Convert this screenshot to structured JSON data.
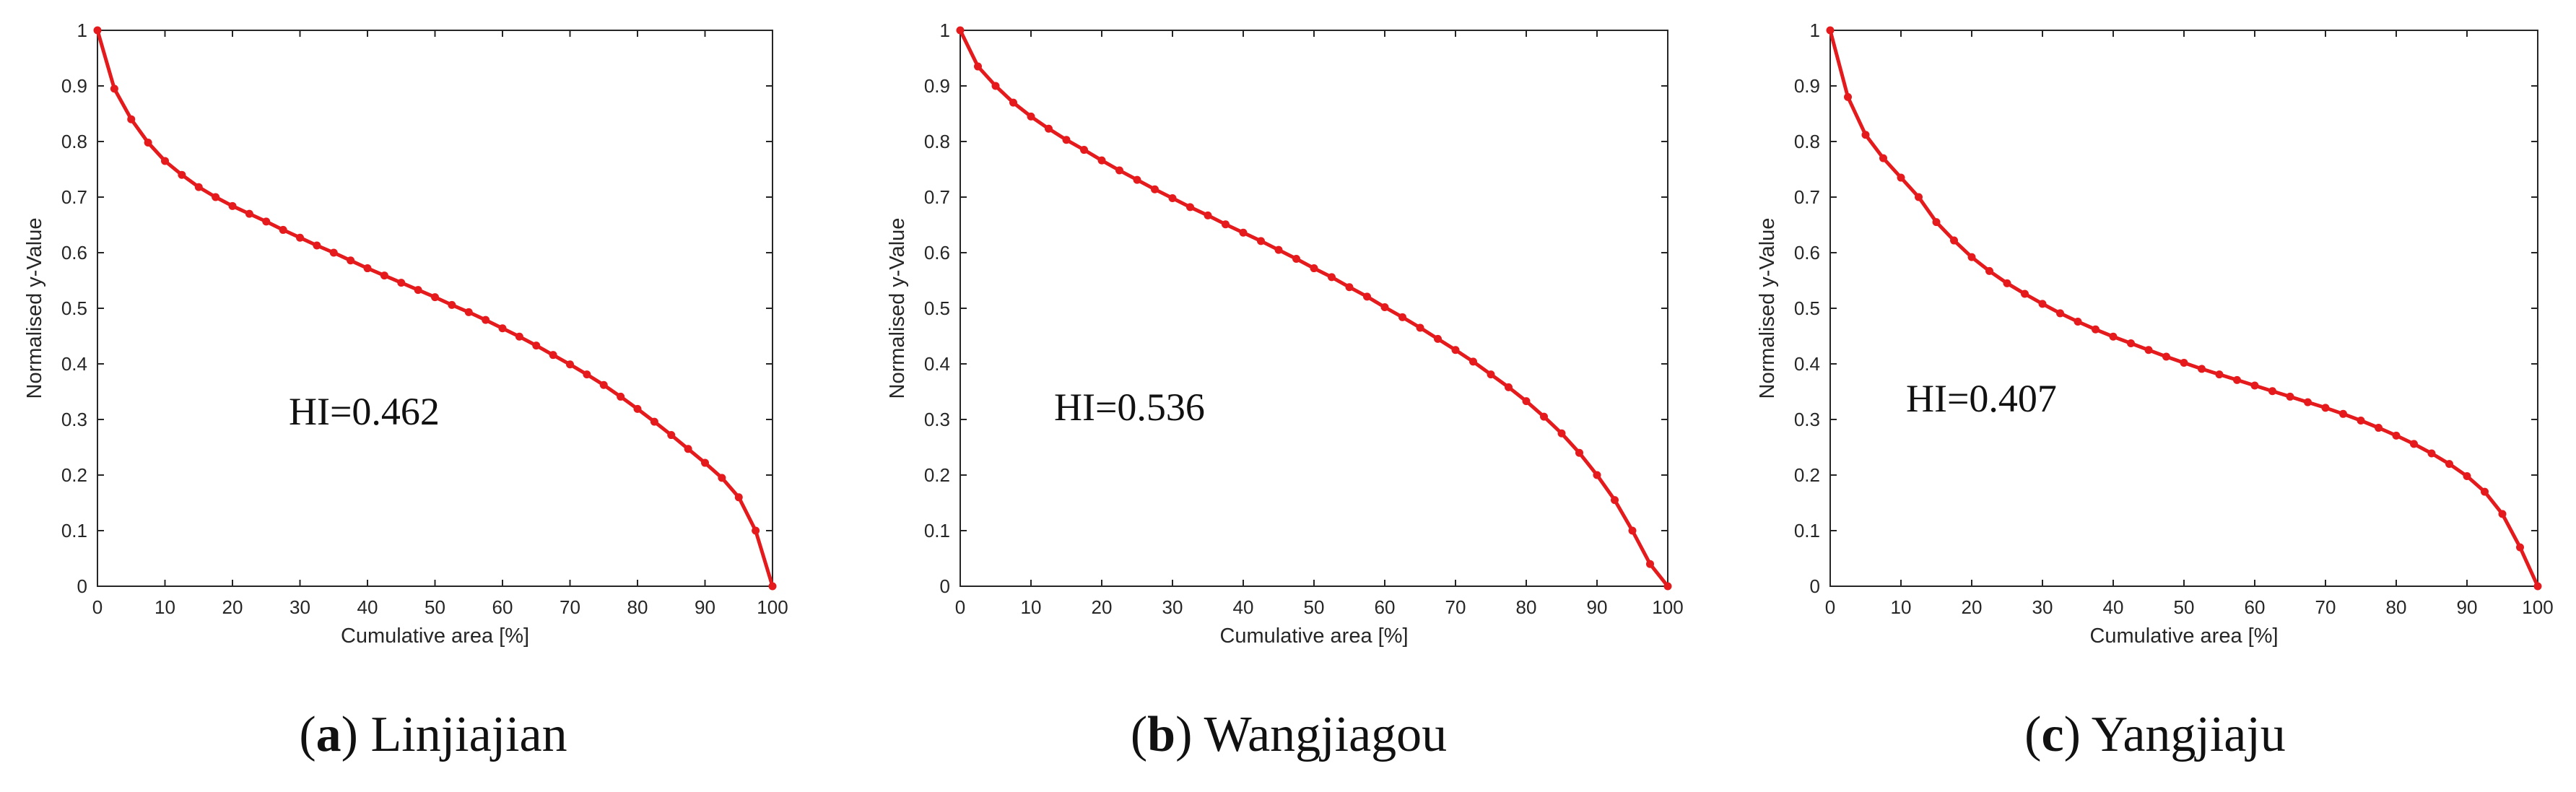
{
  "colors": {
    "curve": "#e41a1c",
    "axis": "#262626"
  },
  "chart_data": [
    {
      "type": "line",
      "xlabel": "Cumulative area [%]",
      "ylabel": "Normalised y-Value",
      "xlim": [
        0,
        100
      ],
      "ylim": [
        0,
        1
      ],
      "xticks": [
        0,
        10,
        20,
        30,
        40,
        50,
        60,
        70,
        80,
        90,
        100
      ],
      "yticks": [
        0,
        0.1,
        0.2,
        0.3,
        0.4,
        0.5,
        0.6,
        0.7,
        0.8,
        0.9,
        1
      ],
      "grid": false,
      "annotation": "HI=0.462",
      "caption": {
        "letter": "a",
        "name": "Linjiajian"
      },
      "series": [
        {
          "x": [
            0,
            2.5,
            5,
            7.5,
            10,
            12.5,
            15,
            17.5,
            20,
            22.5,
            25,
            27.5,
            30,
            32.5,
            35,
            37.5,
            40,
            42.5,
            45,
            47.5,
            50,
            52.5,
            55,
            57.5,
            60,
            62.5,
            65,
            67.5,
            70,
            72.5,
            75,
            77.5,
            80,
            82.5,
            85,
            87.5,
            90,
            92.5,
            95,
            97.5,
            100
          ],
          "y": [
            1.0,
            0.895,
            0.84,
            0.798,
            0.765,
            0.74,
            0.718,
            0.7,
            0.684,
            0.67,
            0.656,
            0.641,
            0.627,
            0.613,
            0.6,
            0.586,
            0.572,
            0.559,
            0.546,
            0.533,
            0.52,
            0.506,
            0.493,
            0.479,
            0.464,
            0.449,
            0.433,
            0.416,
            0.399,
            0.381,
            0.362,
            0.341,
            0.319,
            0.296,
            0.272,
            0.247,
            0.222,
            0.195,
            0.16,
            0.1,
            0.0
          ]
        }
      ]
    },
    {
      "type": "line",
      "xlabel": "Cumulative area [%]",
      "ylabel": "Normalised y-Value",
      "xlim": [
        0,
        100
      ],
      "ylim": [
        0,
        1
      ],
      "xticks": [
        0,
        10,
        20,
        30,
        40,
        50,
        60,
        70,
        80,
        90,
        100
      ],
      "yticks": [
        0,
        0.1,
        0.2,
        0.3,
        0.4,
        0.5,
        0.6,
        0.7,
        0.8,
        0.9,
        1
      ],
      "grid": false,
      "annotation": "HI=0.536",
      "caption": {
        "letter": "b",
        "name": "Wangjiagou"
      },
      "series": [
        {
          "x": [
            0,
            2.5,
            5,
            7.5,
            10,
            12.5,
            15,
            17.5,
            20,
            22.5,
            25,
            27.5,
            30,
            32.5,
            35,
            37.5,
            40,
            42.5,
            45,
            47.5,
            50,
            52.5,
            55,
            57.5,
            60,
            62.5,
            65,
            67.5,
            70,
            72.5,
            75,
            77.5,
            80,
            82.5,
            85,
            87.5,
            90,
            92.5,
            95,
            97.5,
            100
          ],
          "y": [
            1.0,
            0.935,
            0.9,
            0.87,
            0.845,
            0.823,
            0.803,
            0.785,
            0.766,
            0.748,
            0.731,
            0.714,
            0.698,
            0.682,
            0.667,
            0.651,
            0.636,
            0.621,
            0.605,
            0.589,
            0.572,
            0.556,
            0.538,
            0.521,
            0.502,
            0.484,
            0.465,
            0.445,
            0.425,
            0.404,
            0.381,
            0.358,
            0.333,
            0.305,
            0.275,
            0.24,
            0.2,
            0.155,
            0.1,
            0.04,
            0.0
          ]
        }
      ]
    },
    {
      "type": "line",
      "xlabel": "Cumulative area [%]",
      "ylabel": "Normalised y-Value",
      "xlim": [
        0,
        100
      ],
      "ylim": [
        0,
        1
      ],
      "xticks": [
        0,
        10,
        20,
        30,
        40,
        50,
        60,
        70,
        80,
        90,
        100
      ],
      "yticks": [
        0,
        0.1,
        0.2,
        0.3,
        0.4,
        0.5,
        0.6,
        0.7,
        0.8,
        0.9,
        1
      ],
      "grid": false,
      "annotation": "HI=0.407",
      "caption": {
        "letter": "c",
        "name": "Yangjiaju"
      },
      "series": [
        {
          "x": [
            0,
            2.5,
            5,
            7.5,
            10,
            12.5,
            15,
            17.5,
            20,
            22.5,
            25,
            27.5,
            30,
            32.5,
            35,
            37.5,
            40,
            42.5,
            45,
            47.5,
            50,
            52.5,
            55,
            57.5,
            60,
            62.5,
            65,
            67.5,
            70,
            72.5,
            75,
            77.5,
            80,
            82.5,
            85,
            87.5,
            90,
            92.5,
            95,
            97.5,
            100
          ],
          "y": [
            1.0,
            0.88,
            0.812,
            0.77,
            0.735,
            0.7,
            0.655,
            0.622,
            0.592,
            0.567,
            0.545,
            0.526,
            0.508,
            0.491,
            0.476,
            0.462,
            0.449,
            0.437,
            0.425,
            0.413,
            0.402,
            0.391,
            0.381,
            0.371,
            0.361,
            0.351,
            0.341,
            0.331,
            0.321,
            0.31,
            0.298,
            0.285,
            0.271,
            0.256,
            0.239,
            0.22,
            0.198,
            0.17,
            0.13,
            0.07,
            0.0
          ]
        }
      ]
    }
  ]
}
